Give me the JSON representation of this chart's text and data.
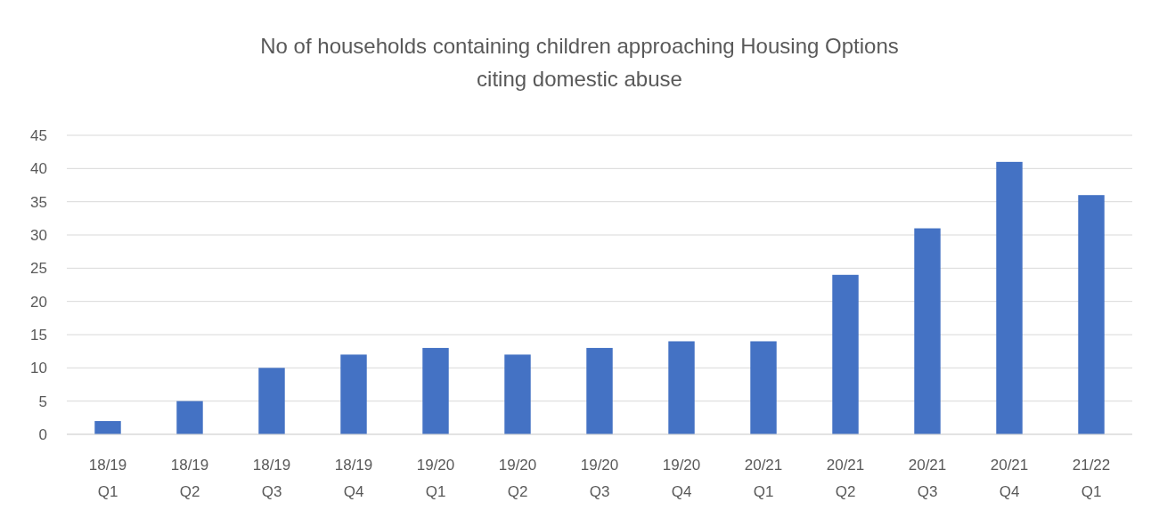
{
  "chart_data": {
    "type": "bar",
    "title": "No of households containing children approaching Housing Options\nciting domestic abuse",
    "categories": [
      "18/19\nQ1",
      "18/19\nQ2",
      "18/19\nQ3",
      "18/19\nQ4",
      "19/20\nQ1",
      "19/20\nQ2",
      "19/20\nQ3",
      "19/20\nQ4",
      "20/21\nQ1",
      "20/21\nQ2",
      "20/21\nQ3",
      "20/21\nQ4",
      "21/22\nQ1"
    ],
    "values": [
      2,
      5,
      10,
      12,
      13,
      12,
      13,
      14,
      14,
      24,
      31,
      41,
      36
    ],
    "color": "#4472c4",
    "ylim": [
      0,
      45
    ],
    "yticks": [
      0,
      5,
      10,
      15,
      20,
      25,
      30,
      35,
      40,
      45
    ],
    "grid": "y"
  }
}
